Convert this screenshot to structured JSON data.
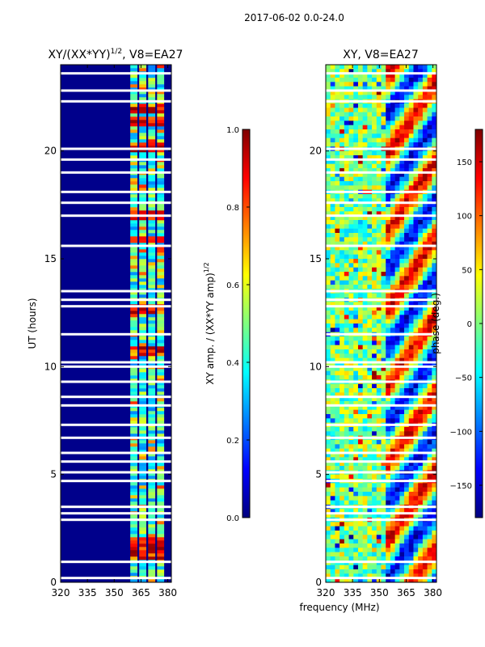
{
  "figure": {
    "suptitle": "2017-06-02 0.0-24.0"
  },
  "colors": {
    "jet": [
      "#00007f",
      "#0000ff",
      "#007fff",
      "#00ffff",
      "#7fff7f",
      "#ffff00",
      "#ff7f00",
      "#ff0000",
      "#7f0000"
    ],
    "background": "#00008b"
  },
  "chart_data": [
    {
      "type": "heatmap",
      "title_main": "XY/(XX*YY)",
      "title_exp": "1/2",
      "title_tail": ", V8=EA27",
      "xlabel": "",
      "ylabel": "UT (hours)",
      "xlim": [
        320,
        382
      ],
      "ylim": [
        0,
        24
      ],
      "xticks": [
        "320",
        "335",
        "350",
        "365",
        "380"
      ],
      "xtick_values": [
        320,
        335,
        350,
        365,
        380
      ],
      "yticks": [
        "0",
        "5",
        "10",
        "15",
        "20"
      ],
      "ytick_values": [
        0,
        5,
        10,
        15,
        20
      ],
      "bright_bands_mhz": [
        [
          359,
          363
        ],
        [
          364,
          368
        ],
        [
          369,
          373
        ],
        [
          374,
          378
        ]
      ],
      "hot_hours": [
        1.3,
        1.6,
        1.9,
        10.7,
        12.7,
        15.9,
        17.0,
        20.2,
        21.4,
        22.0
      ],
      "flagged_hours": [
        0.2,
        0.95,
        2.9,
        3.2,
        3.5,
        4.7,
        5.1,
        5.6,
        6.0,
        6.7,
        7.3,
        8.2,
        8.6,
        9.3,
        10.0,
        10.2,
        11.5,
        12.8,
        13.1,
        13.5,
        15.6,
        17.0,
        17.6,
        18.1,
        19.0,
        19.6,
        20.1,
        22.3,
        22.8,
        23.6
      ]
    },
    {
      "type": "colorbar",
      "label_main": "XY amp. / (XX*YY amp)",
      "label_exp": "1/2",
      "range": [
        0.0,
        1.0
      ],
      "ticks": [
        "0.0",
        "0.2",
        "0.4",
        "0.6",
        "0.8",
        "1.0"
      ],
      "tick_values": [
        0.0,
        0.2,
        0.4,
        0.6,
        0.8,
        1.0
      ]
    },
    {
      "type": "heatmap",
      "title": "XY, V8=EA27",
      "xlabel": "frequency (MHz)",
      "ylabel": "",
      "xlim": [
        320,
        382
      ],
      "ylim": [
        0,
        24
      ],
      "xticks": [
        "320",
        "335",
        "350",
        "365",
        "380"
      ],
      "xtick_values": [
        320,
        335,
        350,
        365,
        380
      ],
      "yticks": [
        "0",
        "5",
        "10",
        "15",
        "20"
      ],
      "ytick_values": [
        0,
        5,
        10,
        15,
        20
      ],
      "flagged_hours": [
        0.2,
        0.95,
        2.9,
        3.2,
        3.5,
        4.7,
        5.1,
        5.6,
        6.0,
        6.7,
        7.3,
        8.2,
        8.6,
        9.3,
        10.0,
        10.2,
        11.5,
        12.8,
        13.1,
        13.5,
        15.6,
        17.0,
        17.6,
        18.1,
        19.0,
        19.6,
        20.1,
        22.3,
        22.8,
        23.6
      ]
    },
    {
      "type": "colorbar",
      "label": "phase (deg.)",
      "range": [
        -180,
        180
      ],
      "ticks": [
        "−150",
        "−100",
        "−50",
        "0",
        "50",
        "100",
        "150"
      ],
      "tick_values": [
        -150,
        -100,
        -50,
        0,
        50,
        100,
        150
      ]
    }
  ]
}
